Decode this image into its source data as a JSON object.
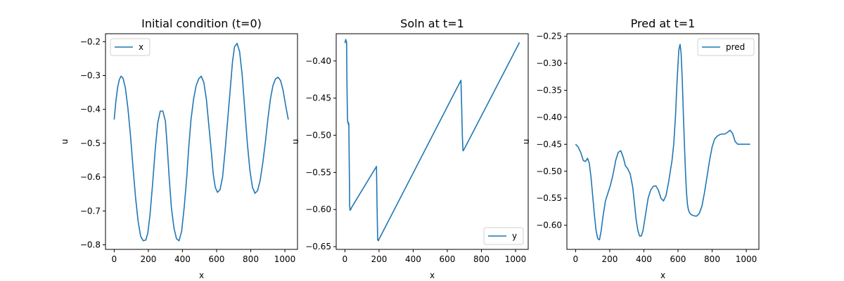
{
  "chart_data": [
    {
      "type": "line",
      "title": "Initial condition (t=0)",
      "xlabel": "x",
      "ylabel": "u",
      "xlim": [
        -51,
        1074
      ],
      "ylim": [
        -0.8135,
        -0.1765
      ],
      "xticks": [
        0,
        200,
        400,
        600,
        800,
        1000
      ],
      "yticks": [
        -0.8,
        -0.7,
        -0.6,
        -0.5,
        -0.4,
        -0.3,
        -0.2
      ],
      "xtick_labels": [
        "0",
        "200",
        "400",
        "600",
        "800",
        "1000"
      ],
      "ytick_labels": [
        "−0.8",
        "−0.7",
        "−0.6",
        "−0.5",
        "−0.4",
        "−0.3",
        "−0.2"
      ],
      "legend_position": "upper-left",
      "color": "#1f77b4",
      "series": [
        {
          "name": "x",
          "x": [
            0,
            10,
            20,
            30,
            40,
            52,
            65,
            80,
            95,
            110,
            125,
            140,
            155,
            170,
            185,
            197,
            210,
            225,
            240,
            255,
            270,
            285,
            300,
            310,
            322,
            335,
            350,
            365,
            380,
            395,
            410,
            425,
            437,
            450,
            465,
            480,
            495,
            510,
            525,
            540,
            555,
            570,
            580,
            592,
            605,
            620,
            635,
            650,
            665,
            680,
            693,
            705,
            720,
            735,
            750,
            765,
            780,
            795,
            810,
            825,
            840,
            855,
            870,
            885,
            900,
            915,
            930,
            945,
            960,
            975,
            990,
            1005,
            1020
          ],
          "y": [
            -0.43,
            -0.375,
            -0.335,
            -0.312,
            -0.302,
            -0.308,
            -0.335,
            -0.395,
            -0.475,
            -0.57,
            -0.66,
            -0.73,
            -0.775,
            -0.788,
            -0.786,
            -0.765,
            -0.71,
            -0.62,
            -0.52,
            -0.44,
            -0.405,
            -0.405,
            -0.435,
            -0.505,
            -0.6,
            -0.69,
            -0.75,
            -0.782,
            -0.788,
            -0.76,
            -0.69,
            -0.6,
            -0.51,
            -0.43,
            -0.37,
            -0.33,
            -0.31,
            -0.302,
            -0.32,
            -0.37,
            -0.45,
            -0.53,
            -0.59,
            -0.63,
            -0.645,
            -0.637,
            -0.6,
            -0.52,
            -0.43,
            -0.34,
            -0.26,
            -0.215,
            -0.205,
            -0.23,
            -0.3,
            -0.4,
            -0.5,
            -0.58,
            -0.63,
            -0.648,
            -0.64,
            -0.61,
            -0.56,
            -0.5,
            -0.43,
            -0.37,
            -0.33,
            -0.31,
            -0.305,
            -0.315,
            -0.345,
            -0.39,
            -0.43
          ]
        }
      ]
    },
    {
      "type": "line",
      "title": "Soln at t=1",
      "xlabel": "x",
      "ylabel": "u",
      "xlim": [
        -51,
        1074
      ],
      "ylim": [
        -0.6537,
        -0.3633
      ],
      "xticks": [
        0,
        200,
        400,
        600,
        800,
        1000
      ],
      "yticks": [
        -0.65,
        -0.6,
        -0.55,
        -0.5,
        -0.45,
        -0.4
      ],
      "xtick_labels": [
        "0",
        "200",
        "400",
        "600",
        "800",
        "1000"
      ],
      "ytick_labels": [
        "−0.65",
        "−0.60",
        "−0.55",
        "−0.50",
        "−0.45",
        "−0.40"
      ],
      "legend_position": "lower-right",
      "color": "#1f77b4",
      "series": [
        {
          "name": "y",
          "x": [
            0,
            5,
            10,
            12,
            15,
            17,
            19,
            21,
            23,
            26,
            28,
            30,
            34,
            40,
            185,
            188,
            192,
            196,
            200,
            680,
            684,
            688,
            692,
            696,
            1023
          ],
          "y": [
            -0.376,
            -0.371,
            -0.375,
            -0.43,
            -0.478,
            -0.483,
            -0.482,
            -0.486,
            -0.484,
            -0.55,
            -0.595,
            -0.601,
            -0.6,
            -0.597,
            -0.542,
            -0.59,
            -0.641,
            -0.642,
            -0.64,
            -0.426,
            -0.46,
            -0.5,
            -0.521,
            -0.52,
            -0.375
          ]
        }
      ]
    },
    {
      "type": "line",
      "title": "Pred at t=1",
      "xlabel": "x",
      "ylabel": "u",
      "xlim": [
        -51,
        1074
      ],
      "ylim": [
        -0.6448,
        -0.2452
      ],
      "xticks": [
        0,
        200,
        400,
        600,
        800,
        1000
      ],
      "yticks": [
        -0.6,
        -0.55,
        -0.5,
        -0.45,
        -0.4,
        -0.35,
        -0.3,
        -0.25
      ],
      "xtick_labels": [
        "0",
        "200",
        "400",
        "600",
        "800",
        "1000"
      ],
      "ytick_labels": [
        "−0.60",
        "−0.55",
        "−0.50",
        "−0.45",
        "−0.40",
        "−0.35",
        "−0.30",
        "−0.25"
      ],
      "legend_position": "upper-right",
      "color": "#1f77b4",
      "series": [
        {
          "name": "pred",
          "x": [
            0,
            15,
            30,
            45,
            58,
            70,
            80,
            90,
            100,
            110,
            120,
            130,
            140,
            150,
            160,
            175,
            190,
            205,
            220,
            235,
            250,
            265,
            280,
            292,
            305,
            320,
            335,
            345,
            355,
            365,
            375,
            385,
            395,
            405,
            415,
            425,
            440,
            455,
            470,
            485,
            500,
            515,
            530,
            545,
            555,
            565,
            575,
            585,
            595,
            605,
            612,
            618,
            625,
            632,
            640,
            645,
            650,
            655,
            660,
            665,
            670,
            680,
            690,
            700,
            710,
            725,
            740,
            755,
            770,
            785,
            800,
            815,
            830,
            845,
            860,
            875,
            890,
            905,
            920,
            935,
            950,
            965,
            980,
            995,
            1010,
            1023
          ],
          "y": [
            -0.45,
            -0.455,
            -0.465,
            -0.48,
            -0.482,
            -0.476,
            -0.485,
            -0.51,
            -0.545,
            -0.58,
            -0.61,
            -0.625,
            -0.627,
            -0.61,
            -0.585,
            -0.555,
            -0.54,
            -0.525,
            -0.505,
            -0.48,
            -0.465,
            -0.462,
            -0.475,
            -0.49,
            -0.495,
            -0.505,
            -0.53,
            -0.56,
            -0.59,
            -0.61,
            -0.62,
            -0.62,
            -0.61,
            -0.59,
            -0.57,
            -0.55,
            -0.535,
            -0.528,
            -0.527,
            -0.535,
            -0.55,
            -0.555,
            -0.545,
            -0.52,
            -0.5,
            -0.48,
            -0.45,
            -0.4,
            -0.33,
            -0.275,
            -0.265,
            -0.28,
            -0.33,
            -0.4,
            -0.47,
            -0.51,
            -0.54,
            -0.56,
            -0.57,
            -0.575,
            -0.578,
            -0.581,
            -0.582,
            -0.583,
            -0.583,
            -0.578,
            -0.565,
            -0.54,
            -0.51,
            -0.48,
            -0.455,
            -0.44,
            -0.435,
            -0.432,
            -0.431,
            -0.431,
            -0.428,
            -0.424,
            -0.43,
            -0.445,
            -0.45,
            -0.45,
            -0.45,
            -0.45,
            -0.45,
            -0.45
          ]
        }
      ]
    }
  ]
}
